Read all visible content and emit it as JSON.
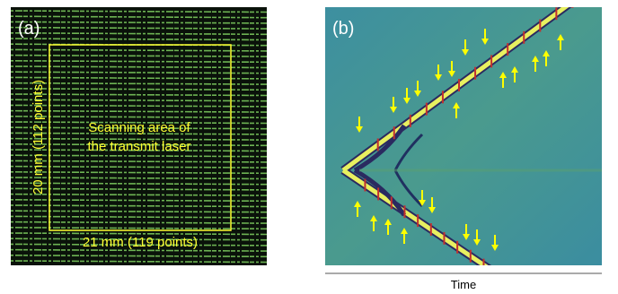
{
  "panel_a": {
    "label": "(a)",
    "annotation": [
      "Scanning area of",
      "the transmit laser"
    ],
    "height_label": "20 mm (112 points)",
    "width_label": "21 mm (119 points)"
  },
  "panel_b": {
    "label": "(b)",
    "x_axis_label": "Time"
  }
}
